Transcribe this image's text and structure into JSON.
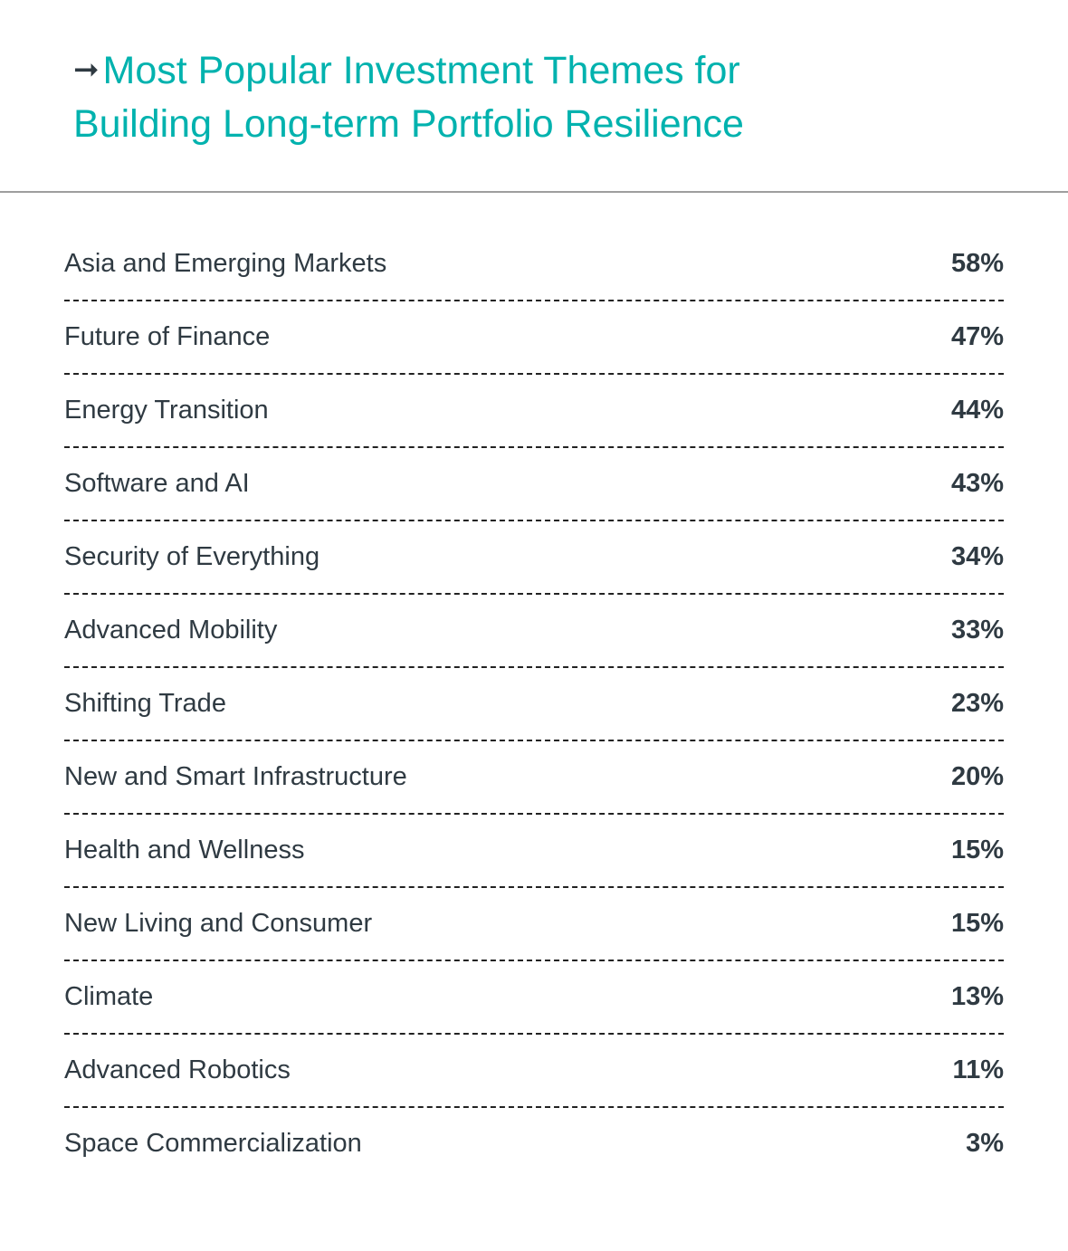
{
  "header": {
    "arrow_icon": "right-arrow",
    "title": "Most Popular Investment Themes for Building Long-term Portfolio Resilience"
  },
  "colors": {
    "title": "#00b2ae",
    "text": "#2f3a42",
    "rule": "#9e9e9e"
  },
  "rows": [
    {
      "label": "Asia and Emerging Markets",
      "value": "58%"
    },
    {
      "label": "Future of Finance",
      "value": "47%"
    },
    {
      "label": "Energy Transition",
      "value": "44%"
    },
    {
      "label": "Software and AI",
      "value": "43%"
    },
    {
      "label": "Security of Everything",
      "value": "34%"
    },
    {
      "label": "Advanced Mobility",
      "value": "33%"
    },
    {
      "label": "Shifting Trade",
      "value": "23%"
    },
    {
      "label": "New and Smart Infrastructure",
      "value": "20%"
    },
    {
      "label": "Health and Wellness",
      "value": "15%"
    },
    {
      "label": "New Living and Consumer",
      "value": "15%"
    },
    {
      "label": "Climate",
      "value": "13%"
    },
    {
      "label": "Advanced Robotics",
      "value": "11%"
    },
    {
      "label": "Space Commercialization",
      "value": "3%"
    }
  ]
}
